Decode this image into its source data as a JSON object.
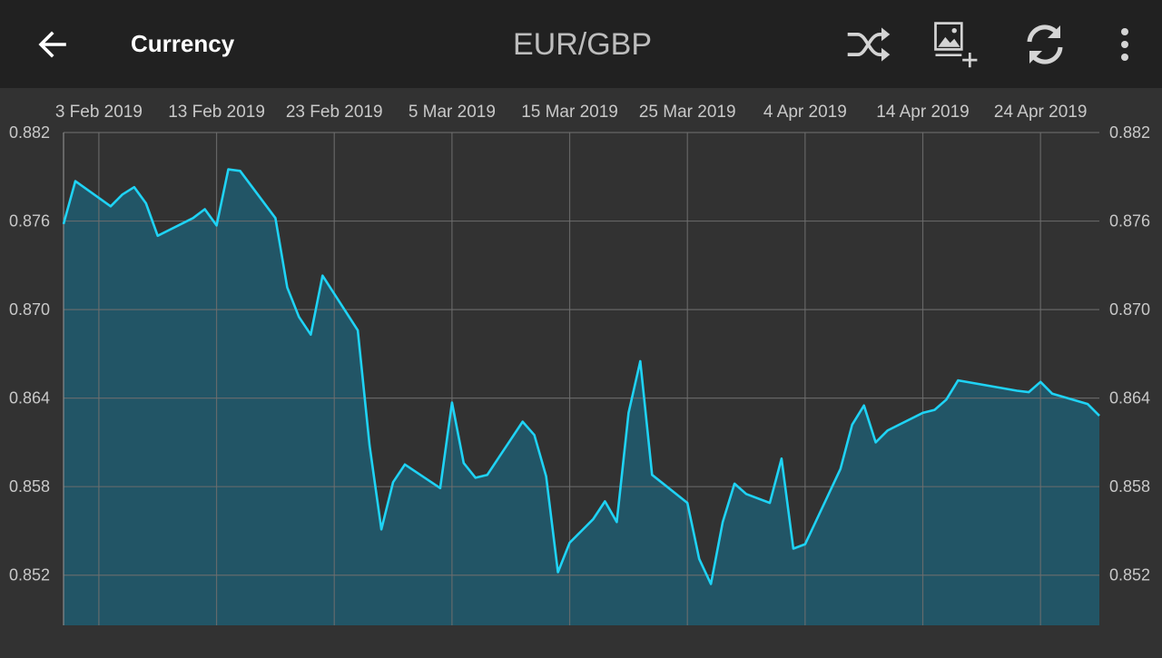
{
  "app_bar": {
    "back_label": "",
    "title": "Currency",
    "pair": "EUR/GBP",
    "icons": [
      "arrow-back-icon",
      "shuffle-icon",
      "add-image-icon",
      "refresh-icon",
      "more-vert-icon"
    ]
  },
  "colors": {
    "app_bar_bg": "#212121",
    "chart_bg": "#323232",
    "line": "#1fd3f5",
    "fill": "#225566",
    "grid": "#6e6e6e"
  },
  "chart_data": {
    "type": "area",
    "title": "",
    "xlabel": "",
    "ylabel": "",
    "x_tick_labels": [
      "3 Feb 2019",
      "13 Feb 2019",
      "23 Feb 2019",
      "5 Mar 2019",
      "15 Mar 2019",
      "25 Mar 2019",
      "4 Apr 2019",
      "14 Apr 2019",
      "24 Apr 2019"
    ],
    "y_tick_labels": [
      "0.882",
      "0.876",
      "0.870",
      "0.864",
      "0.858",
      "0.852"
    ],
    "y_ticks": [
      0.882,
      0.876,
      0.87,
      0.864,
      0.858,
      0.852
    ],
    "ylim": [
      0.8486,
      0.882
    ],
    "xlim": [
      "2019-01-31",
      "2019-04-29"
    ],
    "grid": true,
    "y_axis_labels_both_sides": true,
    "series": [
      {
        "x": [
          "2019-01-31",
          "2019-02-01",
          "2019-02-04",
          "2019-02-05",
          "2019-02-06",
          "2019-02-07",
          "2019-02-08",
          "2019-02-11",
          "2019-02-12",
          "2019-02-13",
          "2019-02-14",
          "2019-02-15",
          "2019-02-18",
          "2019-02-19",
          "2019-02-20",
          "2019-02-21",
          "2019-02-22",
          "2019-02-25",
          "2019-02-26",
          "2019-02-27",
          "2019-02-28",
          "2019-03-01",
          "2019-03-04",
          "2019-03-05",
          "2019-03-06",
          "2019-03-07",
          "2019-03-08",
          "2019-03-09",
          "2019-03-10",
          "2019-03-11",
          "2019-03-12",
          "2019-03-13",
          "2019-03-14",
          "2019-03-15",
          "2019-03-16",
          "2019-03-17",
          "2019-03-18",
          "2019-03-19",
          "2019-03-20",
          "2019-03-21",
          "2019-03-22",
          "2019-03-25",
          "2019-03-26",
          "2019-03-27",
          "2019-03-28",
          "2019-03-29",
          "2019-03-30",
          "2019-04-01",
          "2019-04-02",
          "2019-04-03",
          "2019-04-04",
          "2019-04-07",
          "2019-04-08",
          "2019-04-09",
          "2019-04-10",
          "2019-04-11",
          "2019-04-14",
          "2019-04-15",
          "2019-04-16",
          "2019-04-17",
          "2019-04-22",
          "2019-04-23",
          "2019-04-24",
          "2019-04-25",
          "2019-04-28",
          "2019-04-29"
        ],
        "y": [
          0.8758,
          0.8787,
          0.877,
          0.8778,
          0.8783,
          0.8772,
          0.875,
          0.8762,
          0.8768,
          0.8757,
          0.8795,
          0.8794,
          0.8762,
          0.8715,
          0.8695,
          0.8683,
          0.8723,
          0.8686,
          0.8608,
          0.8551,
          0.8583,
          0.8595,
          0.8579,
          0.8637,
          0.8596,
          0.8586,
          0.8588,
          0.86,
          0.8612,
          0.8624,
          0.8615,
          0.8587,
          0.8522,
          0.8542,
          0.855,
          0.8558,
          0.857,
          0.8556,
          0.863,
          0.8665,
          0.8588,
          0.8569,
          0.8531,
          0.8514,
          0.8556,
          0.8582,
          0.8575,
          0.8569,
          0.8599,
          0.8538,
          0.8541,
          0.8592,
          0.8622,
          0.8635,
          0.861,
          0.8618,
          0.863,
          0.8632,
          0.8639,
          0.8652,
          0.8645,
          0.8644,
          0.8651,
          0.8643,
          0.8636,
          0.8628
        ]
      }
    ]
  }
}
